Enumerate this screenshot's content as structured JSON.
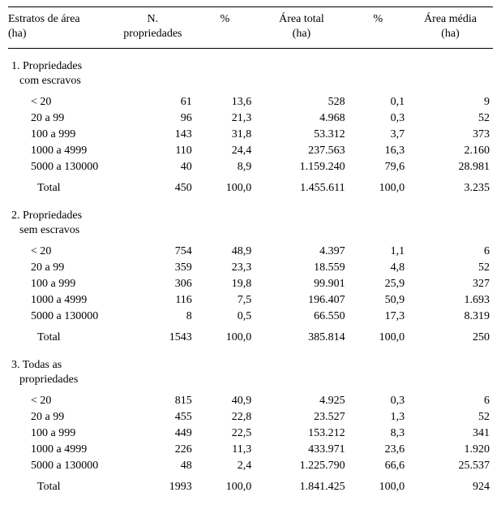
{
  "headers": {
    "col1_l1": "Estratos de área",
    "col1_l2": "(ha)",
    "col2_l1": "N.",
    "col2_l2": "propriedades",
    "col3": "%",
    "col4_l1": "Área total",
    "col4_l2": "(ha)",
    "col5": "%",
    "col6_l1": "Área média",
    "col6_l2": "(ha)"
  },
  "sections": [
    {
      "title_l1": "1. Propriedades",
      "title_l2": "com escravos",
      "rows": [
        {
          "stratum": "< 20",
          "n": "61",
          "p1": "13,6",
          "area": "528",
          "p2": "0,1",
          "avg": "9"
        },
        {
          "stratum": "20 a 99",
          "n": "96",
          "p1": "21,3",
          "area": "4.968",
          "p2": "0,3",
          "avg": "52"
        },
        {
          "stratum": "100 a 999",
          "n": "143",
          "p1": "31,8",
          "area": "53.312",
          "p2": "3,7",
          "avg": "373"
        },
        {
          "stratum": "1000 a 4999",
          "n": "110",
          "p1": "24,4",
          "area": "237.563",
          "p2": "16,3",
          "avg": "2.160"
        },
        {
          "stratum": "5000 a 130000",
          "n": "40",
          "p1": "8,9",
          "area": "1.159.240",
          "p2": "79,6",
          "avg": "28.981"
        }
      ],
      "total": {
        "label": "Total",
        "n": "450",
        "p1": "100,0",
        "area": "1.455.611",
        "p2": "100,0",
        "avg": "3.235"
      }
    },
    {
      "title_l1": "2. Propriedades",
      "title_l2": "sem escravos",
      "rows": [
        {
          "stratum": "< 20",
          "n": "754",
          "p1": "48,9",
          "area": "4.397",
          "p2": "1,1",
          "avg": "6"
        },
        {
          "stratum": "20 a 99",
          "n": "359",
          "p1": "23,3",
          "area": "18.559",
          "p2": "4,8",
          "avg": "52"
        },
        {
          "stratum": "100 a 999",
          "n": "306",
          "p1": "19,8",
          "area": "99.901",
          "p2": "25,9",
          "avg": "327"
        },
        {
          "stratum": "1000 a 4999",
          "n": "116",
          "p1": "7,5",
          "area": "196.407",
          "p2": "50,9",
          "avg": "1.693"
        },
        {
          "stratum": "5000 a 130000",
          "n": "8",
          "p1": "0,5",
          "area": "66.550",
          "p2": "17,3",
          "avg": "8.319"
        }
      ],
      "total": {
        "label": "Total",
        "n": "1543",
        "p1": "100,0",
        "area": "385.814",
        "p2": "100,0",
        "avg": "250"
      }
    },
    {
      "title_l1": "3. Todas as",
      "title_l2": "propriedades",
      "rows": [
        {
          "stratum": "< 20",
          "n": "815",
          "p1": "40,9",
          "area": "4.925",
          "p2": "0,3",
          "avg": "6"
        },
        {
          "stratum": "20 a 99",
          "n": "455",
          "p1": "22,8",
          "area": "23.527",
          "p2": "1,3",
          "avg": "52"
        },
        {
          "stratum": "100 a 999",
          "n": "449",
          "p1": "22,5",
          "area": "153.212",
          "p2": "8,3",
          "avg": "341"
        },
        {
          "stratum": "1000 a 4999",
          "n": "226",
          "p1": "11,3",
          "area": "433.971",
          "p2": "23,6",
          "avg": "1.920"
        },
        {
          "stratum": "5000 a 130000",
          "n": "48",
          "p1": "2,4",
          "area": "1.225.790",
          "p2": "66,6",
          "avg": "25.537"
        }
      ],
      "total": {
        "label": "Total",
        "n": "1993",
        "p1": "100,0",
        "area": "1.841.425",
        "p2": "100,0",
        "avg": "924"
      }
    }
  ]
}
